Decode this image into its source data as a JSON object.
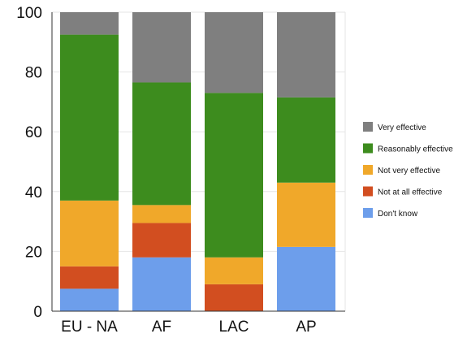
{
  "chart_data": {
    "type": "bar",
    "stacked": true,
    "categories": [
      "EU - NA",
      "AF",
      "LAC",
      "AP"
    ],
    "ylim": [
      0,
      100
    ],
    "yticks": [
      0,
      20,
      40,
      60,
      80,
      100
    ],
    "grid": true,
    "legend_position": "right",
    "series": [
      {
        "name": "Don't know",
        "color": "#6d9eeb",
        "values": [
          7.5,
          18,
          0,
          21.5
        ]
      },
      {
        "name": "Not at all effective",
        "color": "#d24e20",
        "values": [
          7.5,
          11.5,
          9,
          0
        ]
      },
      {
        "name": "Not very effective",
        "color": "#f0a82a",
        "values": [
          22,
          6,
          9,
          21.5
        ]
      },
      {
        "name": "Reasonably effective",
        "color": "#3d8c1e",
        "values": [
          55.5,
          41,
          55,
          28.5
        ]
      },
      {
        "name": "Very effective",
        "color": "#7f7f7f",
        "values": [
          7.5,
          23.5,
          27,
          28.5
        ]
      }
    ]
  }
}
